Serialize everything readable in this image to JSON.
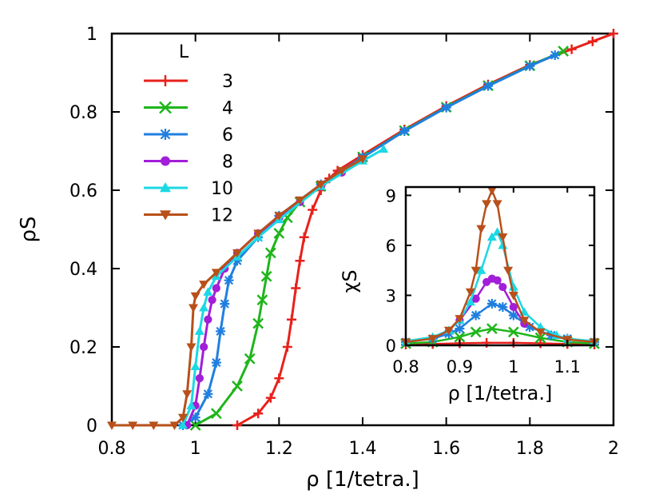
{
  "chart_data": [
    {
      "type": "line",
      "title": "",
      "xlabel": "ρ [1/tetra.]",
      "ylabel": "ρS",
      "xlim": [
        0.8,
        2.0
      ],
      "ylim": [
        0,
        1
      ],
      "xticks": [
        "0.8",
        "1",
        "1.2",
        "1.4",
        "1.6",
        "1.8",
        "2"
      ],
      "yticks": [
        "0",
        "0.2",
        "0.4",
        "0.6",
        "0.8",
        "1"
      ],
      "legend_title": "L",
      "legend_position": "top-left",
      "series": [
        {
          "name": "3",
          "color": "#e8211c",
          "marker": "plus",
          "x": [
            1.1,
            1.15,
            1.18,
            1.2,
            1.22,
            1.23,
            1.24,
            1.25,
            1.26,
            1.28,
            1.3,
            1.32,
            1.34,
            1.4,
            1.5,
            1.6,
            1.7,
            1.8,
            1.9,
            1.95,
            2.0
          ],
          "y": [
            0.0,
            0.03,
            0.07,
            0.12,
            0.2,
            0.27,
            0.35,
            0.42,
            0.48,
            0.55,
            0.6,
            0.63,
            0.65,
            0.69,
            0.755,
            0.815,
            0.87,
            0.92,
            0.96,
            0.98,
            1.0
          ]
        },
        {
          "name": "4",
          "color": "#1fb51b",
          "marker": "x",
          "x": [
            1.0,
            1.05,
            1.1,
            1.13,
            1.15,
            1.16,
            1.17,
            1.18,
            1.2,
            1.22,
            1.25,
            1.3,
            1.4,
            1.5,
            1.6,
            1.7,
            1.8,
            1.88
          ],
          "y": [
            0.0,
            0.03,
            0.1,
            0.17,
            0.26,
            0.32,
            0.38,
            0.44,
            0.49,
            0.53,
            0.57,
            0.61,
            0.685,
            0.752,
            0.812,
            0.867,
            0.918,
            0.955
          ]
        },
        {
          "name": "6",
          "color": "#1f7fe0",
          "marker": "star",
          "x": [
            0.97,
            1.0,
            1.03,
            1.05,
            1.06,
            1.07,
            1.08,
            1.1,
            1.15,
            1.2,
            1.3,
            1.4,
            1.5,
            1.6,
            1.7,
            1.8,
            1.86
          ],
          "y": [
            0.0,
            0.02,
            0.08,
            0.16,
            0.24,
            0.31,
            0.37,
            0.42,
            0.48,
            0.535,
            0.615,
            0.684,
            0.751,
            0.811,
            0.866,
            0.917,
            0.945
          ]
        },
        {
          "name": "8",
          "color": "#a21ed8",
          "marker": "circle",
          "x": [
            0.98,
            1.0,
            1.01,
            1.02,
            1.03,
            1.04,
            1.05,
            1.07,
            1.1,
            1.15,
            1.2,
            1.25,
            1.3,
            1.35
          ],
          "y": [
            0.0,
            0.05,
            0.12,
            0.2,
            0.27,
            0.32,
            0.35,
            0.4,
            0.44,
            0.49,
            0.53,
            0.57,
            0.61,
            0.645
          ]
        },
        {
          "name": "10",
          "color": "#1bd8e4",
          "marker": "triangle-up",
          "x": [
            0.97,
            0.99,
            1.0,
            1.01,
            1.02,
            1.03,
            1.05,
            1.1,
            1.15,
            1.2,
            1.3,
            1.4,
            1.45
          ],
          "y": [
            0.0,
            0.05,
            0.15,
            0.24,
            0.3,
            0.34,
            0.38,
            0.43,
            0.48,
            0.525,
            0.61,
            0.675,
            0.705
          ]
        },
        {
          "name": "12",
          "color": "#b8501a",
          "marker": "triangle-down",
          "x": [
            0.8,
            0.85,
            0.9,
            0.95,
            0.97,
            0.98,
            0.99,
            0.995,
            1.0,
            1.02,
            1.05,
            1.1,
            1.15,
            1.2,
            1.25,
            1.3,
            1.35,
            1.4
          ],
          "y": [
            0.0,
            0.0,
            0.0,
            0.0,
            0.02,
            0.08,
            0.2,
            0.3,
            0.33,
            0.36,
            0.39,
            0.44,
            0.49,
            0.535,
            0.575,
            0.615,
            0.65,
            0.68
          ]
        }
      ]
    },
    {
      "type": "line",
      "title": "",
      "xlabel": "ρ [1/tetra.]",
      "ylabel": "χS",
      "xlim": [
        0.8,
        1.15
      ],
      "ylim": [
        0,
        9.5
      ],
      "xticks": [
        "0.8",
        "0.9",
        "1",
        "1.1"
      ],
      "yticks": [
        "0",
        "3",
        "6",
        "9"
      ],
      "legend_position": "none",
      "series": [
        {
          "name": "3",
          "color": "#e8211c",
          "marker": "plus",
          "x": [
            0.8,
            0.85,
            0.9,
            0.95,
            1.0,
            1.05,
            1.1,
            1.15
          ],
          "y": [
            0.05,
            0.08,
            0.12,
            0.15,
            0.15,
            0.12,
            0.08,
            0.05
          ]
        },
        {
          "name": "4",
          "color": "#1fb51b",
          "marker": "x",
          "x": [
            0.8,
            0.85,
            0.9,
            0.93,
            0.96,
            1.0,
            1.05,
            1.1,
            1.15
          ],
          "y": [
            0.1,
            0.2,
            0.5,
            0.8,
            1.0,
            0.8,
            0.45,
            0.2,
            0.1
          ]
        },
        {
          "name": "6",
          "color": "#1f7fe0",
          "marker": "star",
          "x": [
            0.8,
            0.85,
            0.88,
            0.9,
            0.93,
            0.96,
            0.98,
            1.0,
            1.03,
            1.07,
            1.1,
            1.15
          ],
          "y": [
            0.2,
            0.4,
            0.7,
            1.0,
            1.8,
            2.5,
            2.3,
            1.8,
            1.1,
            0.6,
            0.4,
            0.2
          ]
        },
        {
          "name": "8",
          "color": "#a21ed8",
          "marker": "circle",
          "x": [
            0.9,
            0.93,
            0.95,
            0.96,
            0.97,
            0.98,
            1.0,
            1.02
          ],
          "y": [
            1.5,
            2.8,
            3.8,
            4.0,
            3.9,
            3.5,
            2.3,
            1.3
          ]
        },
        {
          "name": "10",
          "color": "#1bd8e4",
          "marker": "triangle-up",
          "x": [
            0.8,
            0.85,
            0.88,
            0.9,
            0.92,
            0.94,
            0.96,
            0.97,
            0.98,
            1.0,
            1.02,
            1.05,
            1.08,
            1.1,
            1.15
          ],
          "y": [
            0.25,
            0.5,
            0.9,
            1.5,
            2.6,
            4.5,
            6.5,
            6.8,
            6.0,
            3.5,
            2.0,
            1.1,
            0.6,
            0.4,
            0.25
          ]
        },
        {
          "name": "12",
          "color": "#b8501a",
          "marker": "triangle-down",
          "x": [
            0.8,
            0.85,
            0.88,
            0.9,
            0.92,
            0.93,
            0.94,
            0.95,
            0.96,
            0.97,
            0.98,
            0.99,
            1.0,
            1.02,
            1.05,
            1.1,
            1.15
          ],
          "y": [
            0.2,
            0.4,
            0.9,
            1.6,
            3.2,
            4.5,
            7.0,
            8.5,
            9.3,
            8.5,
            6.5,
            4.5,
            3.0,
            1.5,
            0.8,
            0.35,
            0.2
          ]
        }
      ]
    }
  ]
}
